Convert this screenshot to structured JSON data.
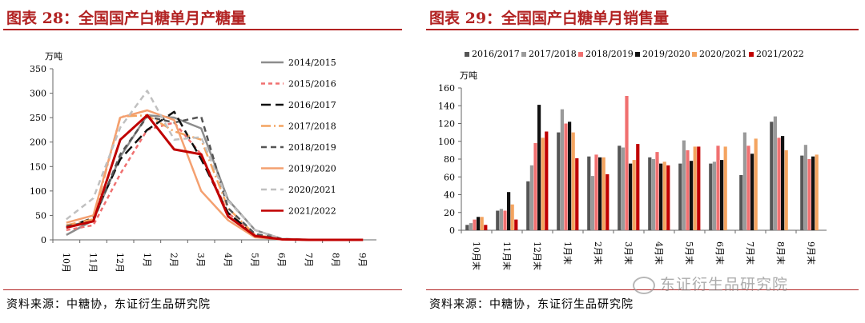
{
  "left": {
    "title": "图表 28：全国国产白糖单月产糖量",
    "source": "资料来源：中糖协，东证衍生品研究院",
    "chart_data": {
      "type": "line",
      "unit": "万吨",
      "x": [
        "10月",
        "11月",
        "12月",
        "1月",
        "2月",
        "3月",
        "4月",
        "5月",
        "6月",
        "7月",
        "8月",
        "9月"
      ],
      "ylim": [
        0,
        350
      ],
      "yticks": [
        0,
        50,
        100,
        150,
        200,
        250,
        300,
        350
      ],
      "legend_position": "right",
      "series": [
        {
          "name": "2014/2015",
          "color": "#8c8c8c",
          "dash": "solid",
          "values": [
            10,
            40,
            170,
            255,
            250,
            228,
            82,
            20,
            2,
            0,
            0,
            0
          ]
        },
        {
          "name": "2015/2016",
          "color": "#f07070",
          "dash": "short-dash",
          "values": [
            20,
            30,
            135,
            225,
            240,
            175,
            55,
            10,
            1,
            0,
            0,
            0
          ]
        },
        {
          "name": "2016/2017",
          "color": "#111111",
          "dash": "long-dash",
          "values": [
            25,
            45,
            165,
            225,
            262,
            165,
            55,
            10,
            1,
            0,
            0,
            0
          ]
        },
        {
          "name": "2017/2018",
          "color": "#f4a460",
          "dash": "dash-dot",
          "values": [
            30,
            42,
            252,
            255,
            222,
            205,
            65,
            10,
            1,
            0,
            0,
            0
          ]
        },
        {
          "name": "2018/2019",
          "color": "#555555",
          "dash": "dash",
          "values": [
            28,
            38,
            175,
            252,
            240,
            252,
            65,
            12,
            2,
            0,
            0,
            0
          ]
        },
        {
          "name": "2019/2020",
          "color": "#f4a070",
          "dash": "solid",
          "values": [
            35,
            50,
            250,
            265,
            245,
            100,
            40,
            5,
            1,
            0,
            0,
            0
          ]
        },
        {
          "name": "2020/2021",
          "color": "#c0c0c0",
          "dash": "dash",
          "values": [
            42,
            85,
            230,
            305,
            205,
            210,
            80,
            20,
            2,
            0,
            0,
            0
          ]
        },
        {
          "name": "2021/2022",
          "color": "#c00000",
          "dash": "solid",
          "values": [
            25,
            38,
            205,
            255,
            185,
            175,
            48,
            8,
            1,
            0,
            0,
            0
          ]
        }
      ]
    }
  },
  "right": {
    "title": "图表 29：全国国产白糖单月销售量",
    "source": "资料来源：中糖协，东证衍生品研究院",
    "chart_data": {
      "type": "bar",
      "unit": "万吨",
      "categories": [
        "10月末",
        "11月末",
        "12月末",
        "1月末",
        "2月末",
        "3月末",
        "4月末",
        "5月末",
        "6月末",
        "7月末",
        "8月末",
        "9月末"
      ],
      "ylim": [
        0,
        160
      ],
      "yticks": [
        0,
        20,
        40,
        60,
        80,
        100,
        120,
        140,
        160
      ],
      "legend_position": "top",
      "series": [
        {
          "name": "2016/2017",
          "color": "#555555",
          "values": [
            6,
            22,
            55,
            110,
            83,
            95,
            82,
            75,
            75,
            62,
            122,
            84
          ]
        },
        {
          "name": "2017/2018",
          "color": "#9a9a9a",
          "values": [
            8,
            24,
            73,
            136,
            61,
            93,
            80,
            101,
            77,
            110,
            128,
            96
          ]
        },
        {
          "name": "2018/2019",
          "color": "#f07070",
          "values": [
            12,
            22,
            98,
            120,
            85,
            151,
            88,
            90,
            95,
            95,
            104,
            80
          ]
        },
        {
          "name": "2019/2020",
          "color": "#111111",
          "values": [
            15,
            43,
            141,
            122,
            82,
            75,
            75,
            78,
            79,
            86,
            106,
            83
          ]
        },
        {
          "name": "2020/2021",
          "color": "#f4a460",
          "values": [
            15,
            29,
            104,
            110,
            82,
            79,
            77,
            94,
            94,
            103,
            90,
            85
          ]
        },
        {
          "name": "2021/2022",
          "color": "#c00000",
          "values": [
            6,
            12,
            111,
            81,
            63,
            97,
            73,
            94,
            null,
            null,
            null,
            null
          ]
        }
      ]
    }
  },
  "watermark": "东证衍生品研究院"
}
